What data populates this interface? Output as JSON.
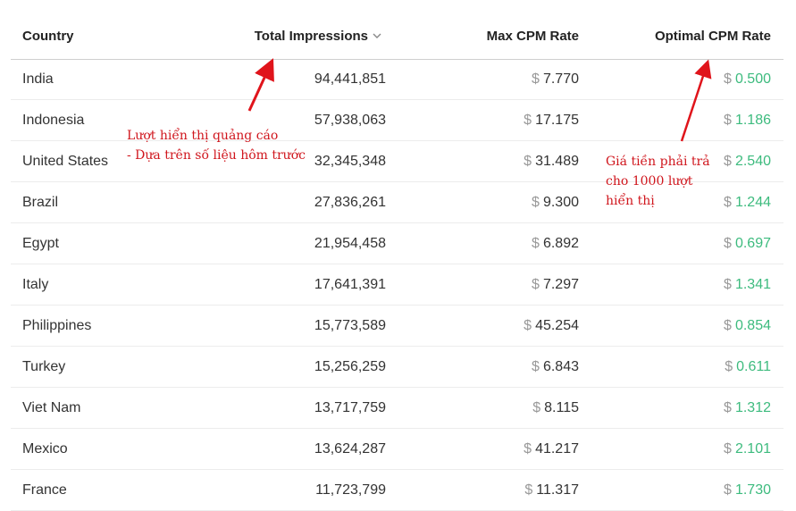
{
  "table": {
    "headers": [
      "Country",
      "Total Impressions",
      "Max CPM Rate",
      "Optimal CPM Rate"
    ],
    "currency": "$",
    "rows": [
      [
        "India",
        "94,441,851",
        "7.770",
        "0.500"
      ],
      [
        "Indonesia",
        "57,938,063",
        "17.175",
        "1.186"
      ],
      [
        "United States",
        "32,345,348",
        "31.489",
        "2.540"
      ],
      [
        "Brazil",
        "27,836,261",
        "9.300",
        "1.244"
      ],
      [
        "Egypt",
        "21,954,458",
        "6.892",
        "0.697"
      ],
      [
        "Italy",
        "17,641,391",
        "7.297",
        "1.341"
      ],
      [
        "Philippines",
        "15,773,589",
        "45.254",
        "0.854"
      ],
      [
        "Turkey",
        "15,256,259",
        "6.843",
        "0.611"
      ],
      [
        "Viet Nam",
        "13,717,759",
        "8.115",
        "1.312"
      ],
      [
        "Mexico",
        "13,624,287",
        "41.217",
        "2.101"
      ],
      [
        "France",
        "11,723,799",
        "11.317",
        "1.730"
      ]
    ]
  },
  "annotations": [
    {
      "lines": [
        "Lượt hiển thị quảng cáo",
        "- Dựa trên số liệu hôm trước"
      ]
    },
    {
      "lines": [
        "Giá tiền phải trả",
        "cho 1000 lượt",
        "hiển thị"
      ]
    }
  ]
}
